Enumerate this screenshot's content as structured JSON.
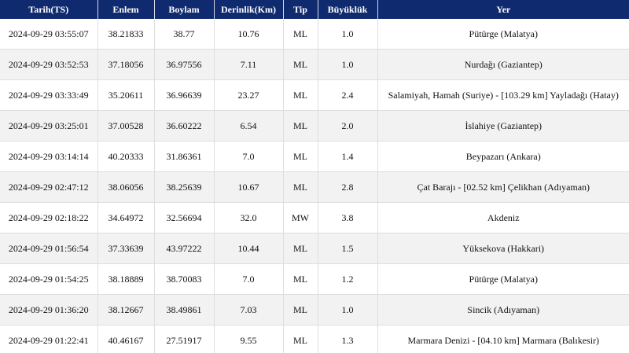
{
  "table": {
    "headers": [
      "Tarih(TS)",
      "Enlem",
      "Boylam",
      "Derinlik(Km)",
      "Tip",
      "Büyüklük",
      "Yer"
    ],
    "rows": [
      [
        "2024-09-29 03:55:07",
        "38.21833",
        "38.77",
        "10.76",
        "ML",
        "1.0",
        "Pütürge (Malatya)"
      ],
      [
        "2024-09-29 03:52:53",
        "37.18056",
        "36.97556",
        "7.11",
        "ML",
        "1.0",
        "Nurdağı (Gaziantep)"
      ],
      [
        "2024-09-29 03:33:49",
        "35.20611",
        "36.96639",
        "23.27",
        "ML",
        "2.4",
        "Salamiyah, Hamah (Suriye) - [103.29 km] Yayladağı (Hatay)"
      ],
      [
        "2024-09-29 03:25:01",
        "37.00528",
        "36.60222",
        "6.54",
        "ML",
        "2.0",
        "İslahiye (Gaziantep)"
      ],
      [
        "2024-09-29 03:14:14",
        "40.20333",
        "31.86361",
        "7.0",
        "ML",
        "1.4",
        "Beypazarı (Ankara)"
      ],
      [
        "2024-09-29 02:47:12",
        "38.06056",
        "38.25639",
        "10.67",
        "ML",
        "2.8",
        "Çat Barajı - [02.52 km] Çelikhan (Adıyaman)"
      ],
      [
        "2024-09-29 02:18:22",
        "34.64972",
        "32.56694",
        "32.0",
        "MW",
        "3.8",
        "Akdeniz"
      ],
      [
        "2024-09-29 01:56:54",
        "37.33639",
        "43.97222",
        "10.44",
        "ML",
        "1.5",
        "Yüksekova (Hakkari)"
      ],
      [
        "2024-09-29 01:54:25",
        "38.18889",
        "38.70083",
        "7.0",
        "ML",
        "1.2",
        "Pütürge (Malatya)"
      ],
      [
        "2024-09-29 01:36:20",
        "38.12667",
        "38.49861",
        "7.03",
        "ML",
        "1.0",
        "Sincik (Adıyaman)"
      ],
      [
        "2024-09-29 01:22:41",
        "40.46167",
        "27.51917",
        "9.55",
        "ML",
        "1.3",
        "Marmara Denizi - [04.10 km] Marmara (Balıkesir)"
      ]
    ]
  },
  "colors": {
    "header_background": "#0f2a6e",
    "header_text": "#ffffff",
    "row_stripe": "#f2f2f2"
  }
}
